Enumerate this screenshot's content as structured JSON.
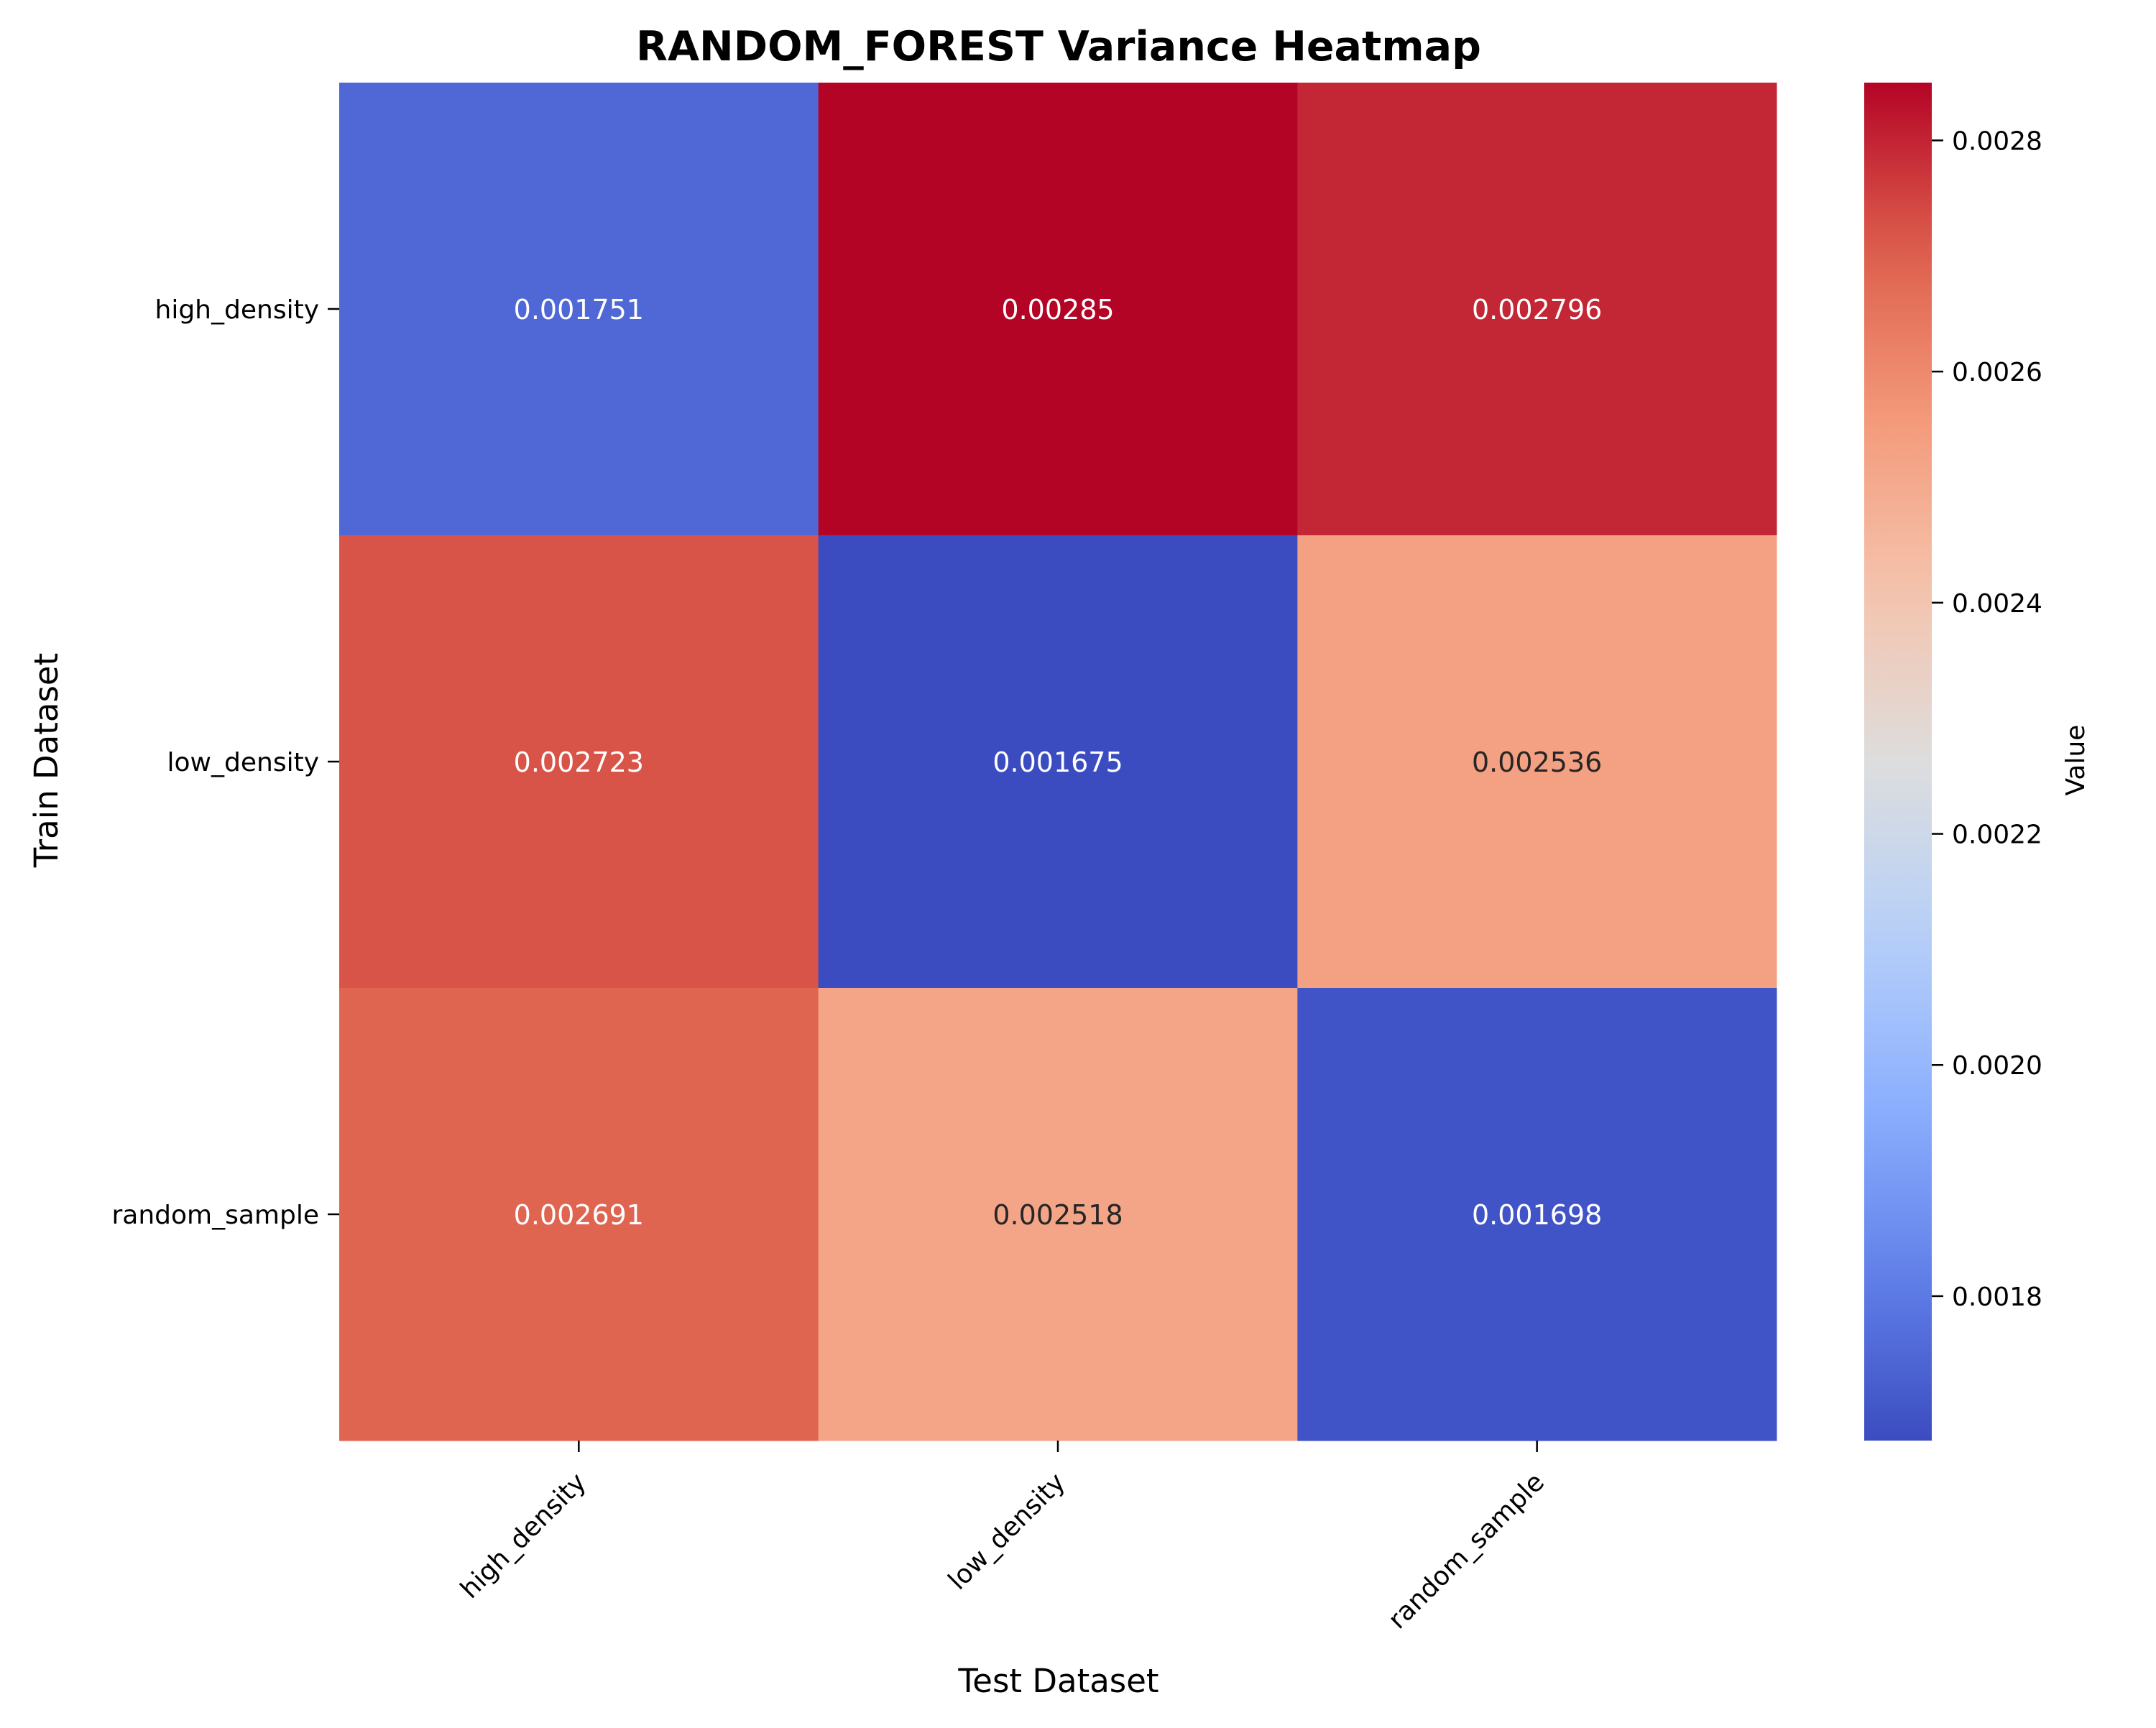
{
  "chart_data": {
    "type": "heatmap",
    "title": "RANDOM_FOREST Variance Heatmap",
    "xlabel": "Test Dataset",
    "ylabel": "Train Dataset",
    "x_categories": [
      "high_density",
      "low_density",
      "random_sample"
    ],
    "y_categories": [
      "high_density",
      "low_density",
      "random_sample"
    ],
    "values": [
      [
        0.001751,
        0.00285,
        0.002796
      ],
      [
        0.002723,
        0.001675,
        0.002536
      ],
      [
        0.002691,
        0.002518,
        0.001698
      ]
    ],
    "cell_labels": [
      [
        "0.001751",
        "0.00285",
        "0.002796"
      ],
      [
        "0.002723",
        "0.001675",
        "0.002536"
      ],
      [
        "0.002691",
        "0.002518",
        "0.001698"
      ]
    ],
    "colorbar": {
      "label": "Value",
      "range": [
        0.001675,
        0.00285
      ],
      "ticks": [
        0.0018,
        0.002,
        0.0022,
        0.0024,
        0.0026,
        0.0028
      ],
      "tick_labels": [
        "0.0018",
        "0.0020",
        "0.0022",
        "0.0024",
        "0.0026",
        "0.0028"
      ],
      "colormap": "coolwarm"
    },
    "grid": false
  }
}
